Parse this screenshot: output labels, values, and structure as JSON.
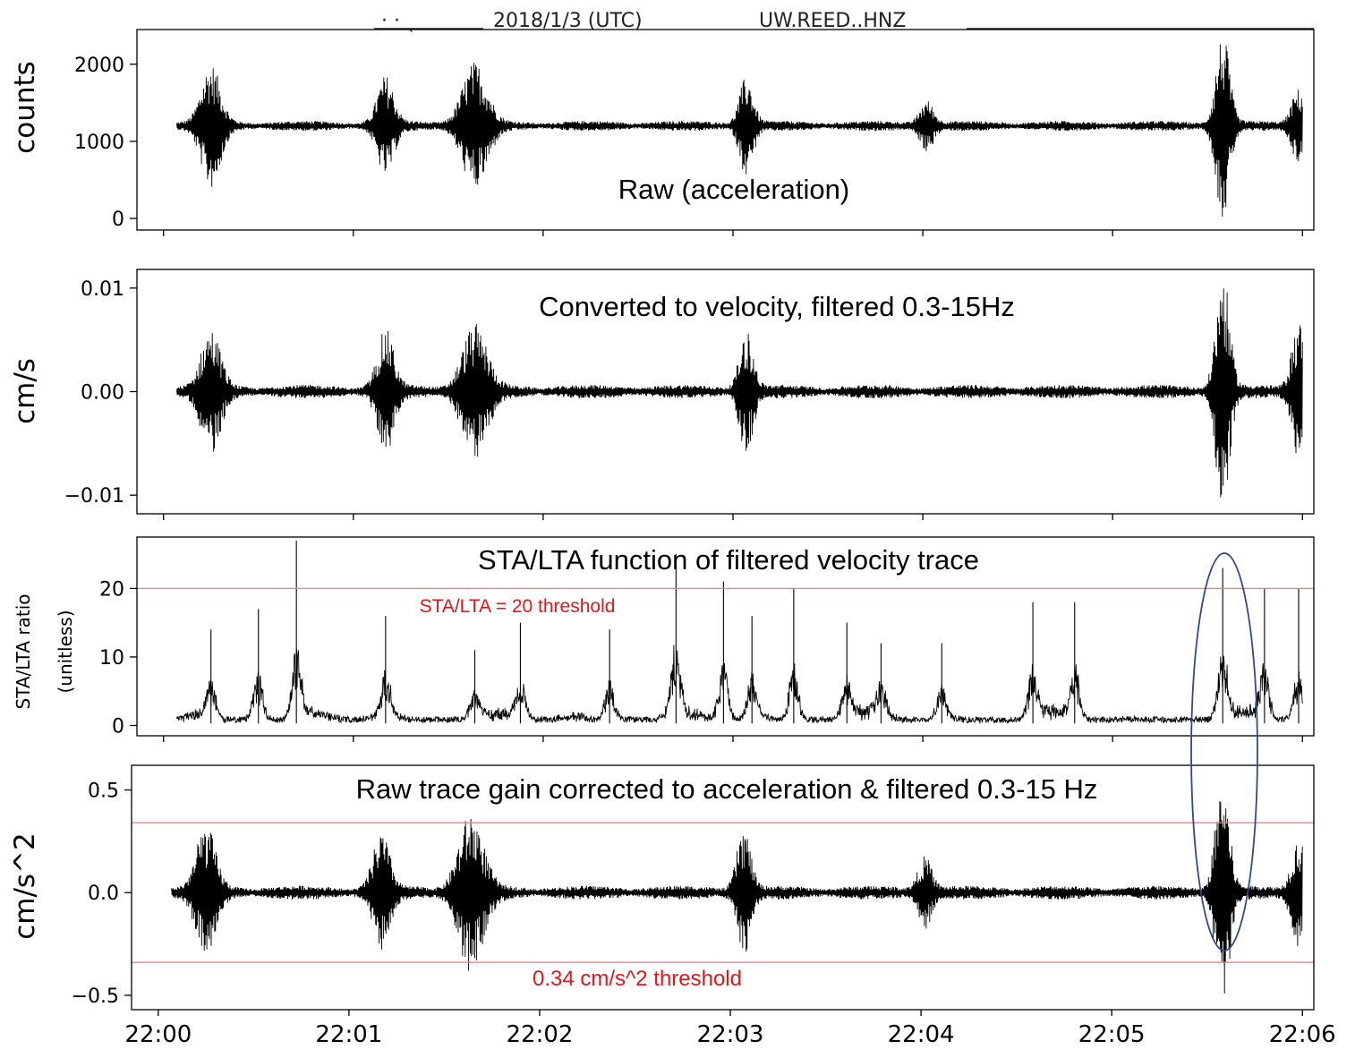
{
  "header": {
    "date": "2018/1/3 (UTC)",
    "station": "UW.REED..HNZ"
  },
  "x_axis": {
    "tick_labels": [
      "22:00",
      "22:01",
      "22:02",
      "22:03",
      "22:04",
      "22:05",
      "22:06"
    ],
    "tick_minutes": [
      0,
      1,
      2,
      3,
      4,
      5,
      6
    ],
    "range_minutes": [
      -0.14,
      6.06
    ]
  },
  "colors": {
    "trace": "#000000",
    "threshold": "#f08080",
    "threshold_text": "#e8141a",
    "highlight_ellipse": "#2e4a8c"
  },
  "chart_data": [
    {
      "type": "line",
      "name": "raw-acceleration",
      "annotation": "Raw (acceleration)",
      "ylabel": "counts",
      "ylim": [
        -150,
        2450
      ],
      "yticks": [
        0,
        1000,
        2000
      ],
      "ytick_labels": [
        "0",
        "1000",
        "2000"
      ],
      "baseline": 1200,
      "noise": 55,
      "bursts": [
        {
          "t": 0.25,
          "amp": 750,
          "w": 0.07
        },
        {
          "t": 1.17,
          "amp": 600,
          "w": 0.06
        },
        {
          "t": 1.64,
          "amp": 780,
          "w": 0.09
        },
        {
          "t": 3.07,
          "amp": 600,
          "w": 0.05
        },
        {
          "t": 4.02,
          "amp": 300,
          "w": 0.05
        },
        {
          "t": 5.58,
          "amp": 1150,
          "w": 0.05
        },
        {
          "t": 5.98,
          "amp": 450,
          "w": 0.05
        }
      ]
    },
    {
      "type": "line",
      "name": "velocity-filtered",
      "annotation": "Converted to velocity, filtered  0.3-15Hz",
      "ylabel": "cm/s",
      "ylim": [
        -0.0118,
        0.0118
      ],
      "yticks": [
        -0.01,
        0.0,
        0.01
      ],
      "ytick_labels": [
        "−0.01",
        "0.00",
        "0.01"
      ],
      "baseline": 0,
      "noise": 0.00055,
      "bursts": [
        {
          "t": 0.25,
          "amp": 0.0055,
          "w": 0.07
        },
        {
          "t": 1.17,
          "amp": 0.0055,
          "w": 0.06
        },
        {
          "t": 1.64,
          "amp": 0.006,
          "w": 0.09
        },
        {
          "t": 3.07,
          "amp": 0.0055,
          "w": 0.05
        },
        {
          "t": 5.58,
          "amp": 0.0112,
          "w": 0.05
        },
        {
          "t": 5.98,
          "amp": 0.0065,
          "w": 0.05
        }
      ]
    },
    {
      "type": "line",
      "name": "sta-lta",
      "annotation": "STA/LTA function of filtered velocity trace",
      "ylabel": "STA/LTA ratio",
      "ylabel2": "(unitless)",
      "ylim": [
        -1.5,
        27.5
      ],
      "yticks": [
        0,
        10,
        20
      ],
      "ytick_labels": [
        "0",
        "10",
        "20"
      ],
      "threshold": 20,
      "threshold_label": "STA/LTA = 20 threshold",
      "spikes": [
        {
          "t": 0.25,
          "v": 14
        },
        {
          "t": 0.5,
          "v": 17
        },
        {
          "t": 0.7,
          "v": 27
        },
        {
          "t": 1.17,
          "v": 16
        },
        {
          "t": 1.64,
          "v": 11
        },
        {
          "t": 1.88,
          "v": 15
        },
        {
          "t": 2.35,
          "v": 14
        },
        {
          "t": 2.7,
          "v": 25
        },
        {
          "t": 2.95,
          "v": 21
        },
        {
          "t": 3.1,
          "v": 16
        },
        {
          "t": 3.32,
          "v": 20
        },
        {
          "t": 3.6,
          "v": 15
        },
        {
          "t": 3.78,
          "v": 12
        },
        {
          "t": 4.1,
          "v": 12
        },
        {
          "t": 4.58,
          "v": 18
        },
        {
          "t": 4.8,
          "v": 18
        },
        {
          "t": 5.58,
          "v": 23
        },
        {
          "t": 5.8,
          "v": 20
        },
        {
          "t": 5.98,
          "v": 20
        }
      ]
    },
    {
      "type": "line",
      "name": "acceleration-filtered",
      "annotation": "Raw trace gain corrected to acceleration & filtered 0.3-15 Hz",
      "ylabel": "cm/s^2",
      "ylim": [
        -0.57,
        0.62
      ],
      "yticks": [
        -0.5,
        0.0,
        0.5
      ],
      "ytick_labels": [
        "−0.5",
        "0.0",
        "0.5"
      ],
      "baseline": 0,
      "noise": 0.028,
      "thresholds": [
        0.34,
        -0.34
      ],
      "threshold_label": "0.34 cm/s^2 threshold",
      "bursts": [
        {
          "t": 0.25,
          "amp": 0.3,
          "w": 0.07
        },
        {
          "t": 1.17,
          "amp": 0.27,
          "w": 0.06
        },
        {
          "t": 1.64,
          "amp": 0.36,
          "w": 0.09
        },
        {
          "t": 3.07,
          "amp": 0.3,
          "w": 0.05
        },
        {
          "t": 4.02,
          "amp": 0.16,
          "w": 0.05
        },
        {
          "t": 5.58,
          "amp": 0.55,
          "w": 0.05
        },
        {
          "t": 5.98,
          "amp": 0.25,
          "w": 0.05
        }
      ]
    }
  ]
}
